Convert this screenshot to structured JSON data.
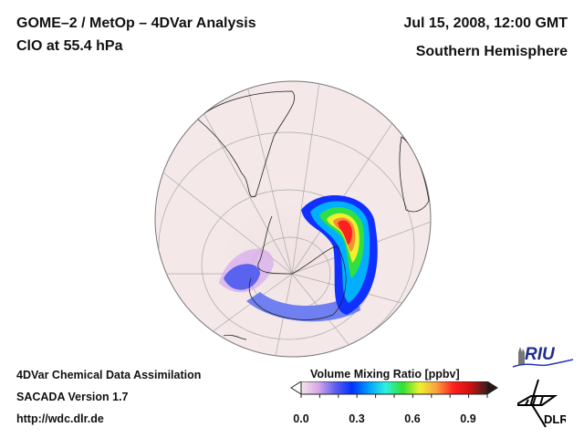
{
  "header": {
    "title_line1": "GOME–2 / MetOp – 4DVar Analysis",
    "title_line2": "ClO at 55.4 hPa",
    "date": "Jul 15, 2008, 12:00 GMT",
    "hemisphere": "Southern Hemisphere"
  },
  "footer": {
    "line1": "4DVar Chemical Data Assimilation",
    "line2": "SACADA Version 1.7",
    "line3": "http://wdc.dlr.de"
  },
  "colorbar": {
    "title": "Volume Mixing Ratio [ppbv]",
    "range": [
      0.0,
      1.0
    ],
    "ticks": [
      "0.0",
      "0.3",
      "0.6",
      "0.9"
    ],
    "tick_values": [
      0.0,
      0.3,
      0.6,
      0.9
    ],
    "colors": [
      "#f3e6ea",
      "#d9a8e8",
      "#6060f0",
      "#0030ff",
      "#00a0ff",
      "#30f0e0",
      "#30e030",
      "#f0f030",
      "#f8a040",
      "#ff2020",
      "#d01010",
      "#3a2020"
    ],
    "extend": "both"
  },
  "logos": {
    "riu_label": "RIU",
    "dlr_label": "DLR"
  },
  "map": {
    "projection": "orthographic",
    "hemisphere": "south",
    "background_color": "#f3e6e8",
    "features": [
      "South America",
      "Antarctic Peninsula",
      "Antarctica",
      "Africa (partial)"
    ],
    "anomaly_description": "High ClO arc over East Antarctic coast, peak ~0.8-0.9 ppbv near 60°S 20°E"
  }
}
